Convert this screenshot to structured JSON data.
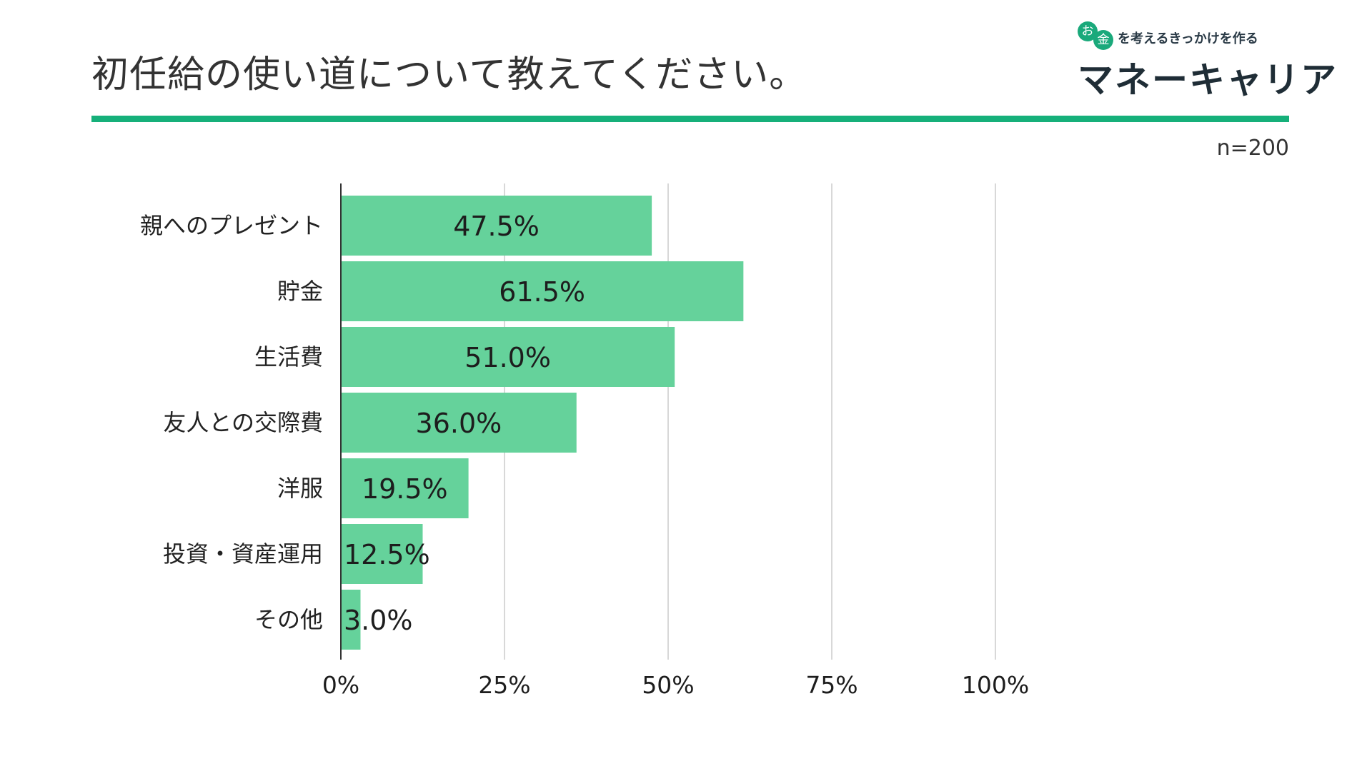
{
  "header": {
    "title": "初任給の使い道について教えてください。",
    "sample_size": "n=200"
  },
  "logo": {
    "coin_a": "お",
    "coin_b": "金",
    "tagline": "を考えるきっかけを作る",
    "name": "マネーキャリア",
    "color": "#1aa97b"
  },
  "colors": {
    "bar": "#65d29b",
    "accent_rule": "#16b07a",
    "grid": "#cccccc",
    "axis": "#333333"
  },
  "chart_data": {
    "type": "bar",
    "orientation": "horizontal",
    "categories": [
      "親へのプレゼント",
      "貯金",
      "生活費",
      "友人との交際費",
      "洋服",
      "投資・資産運用",
      "その他"
    ],
    "values": [
      47.5,
      61.5,
      51.0,
      36.0,
      19.5,
      12.5,
      3.0
    ],
    "value_labels": [
      "47.5%",
      "61.5%",
      "51.0%",
      "36.0%",
      "19.5%",
      "12.5%",
      "3.0%"
    ],
    "xlim": [
      0,
      100
    ],
    "x_ticks": [
      0,
      25,
      50,
      75,
      100
    ],
    "x_tick_labels": [
      "0%",
      "25%",
      "50%",
      "75%",
      "100%"
    ],
    "grid": true,
    "legend": "none"
  }
}
